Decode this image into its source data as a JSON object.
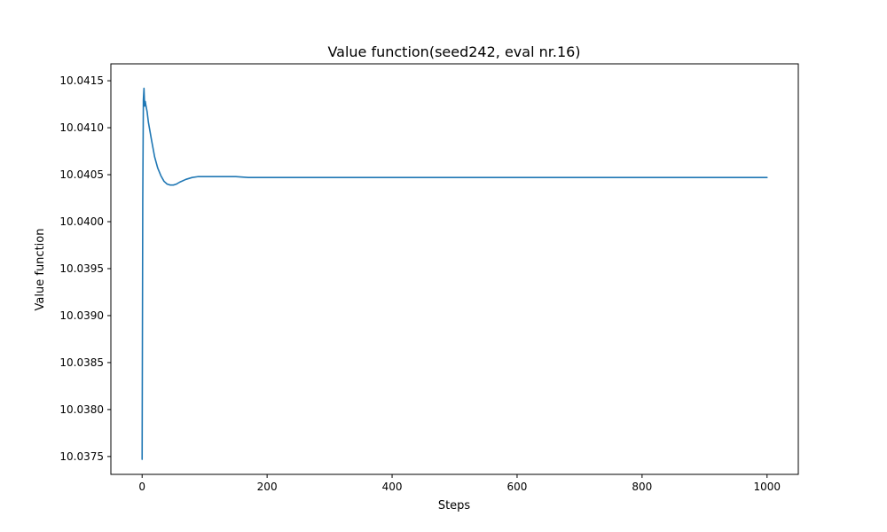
{
  "chart_data": {
    "type": "line",
    "title": "Value function(seed242, eval nr.16)",
    "xlabel": "Steps",
    "ylabel": "Value function",
    "xlim": [
      -50,
      1050
    ],
    "ylim": [
      10.03731,
      10.04168
    ],
    "x_ticks": [
      0,
      200,
      400,
      600,
      800,
      1000
    ],
    "x_tick_labels": [
      "0",
      "200",
      "400",
      "600",
      "800",
      "1000"
    ],
    "y_ticks": [
      10.0375,
      10.038,
      10.0385,
      10.039,
      10.0395,
      10.04,
      10.0405,
      10.041,
      10.0415
    ],
    "y_tick_labels": [
      "10.0375",
      "10.0380",
      "10.0385",
      "10.0390",
      "10.0395",
      "10.0400",
      "10.0405",
      "10.0410",
      "10.0415"
    ],
    "grid": false,
    "legend": "none",
    "series": [
      {
        "color": "#1f77b4",
        "x": [
          0,
          1,
          2,
          3,
          4,
          5,
          6,
          8,
          10,
          15,
          20,
          25,
          30,
          35,
          40,
          45,
          50,
          55,
          60,
          70,
          80,
          90,
          100,
          110,
          130,
          150,
          170,
          200,
          300,
          400,
          500,
          600,
          700,
          800,
          900,
          1000
        ],
        "y": [
          10.03747,
          10.0402,
          10.0413,
          10.04142,
          10.04123,
          10.04128,
          10.04124,
          10.04117,
          10.04106,
          10.04087,
          10.04069,
          10.04057,
          10.04049,
          10.04043,
          10.0404,
          10.04039,
          10.04039,
          10.0404,
          10.04042,
          10.04045,
          10.04047,
          10.04048,
          10.04048,
          10.04048,
          10.04048,
          10.04048,
          10.04047,
          10.04047,
          10.04047,
          10.04047,
          10.04047,
          10.04047,
          10.04047,
          10.04047,
          10.04047,
          10.04047
        ]
      }
    ]
  }
}
